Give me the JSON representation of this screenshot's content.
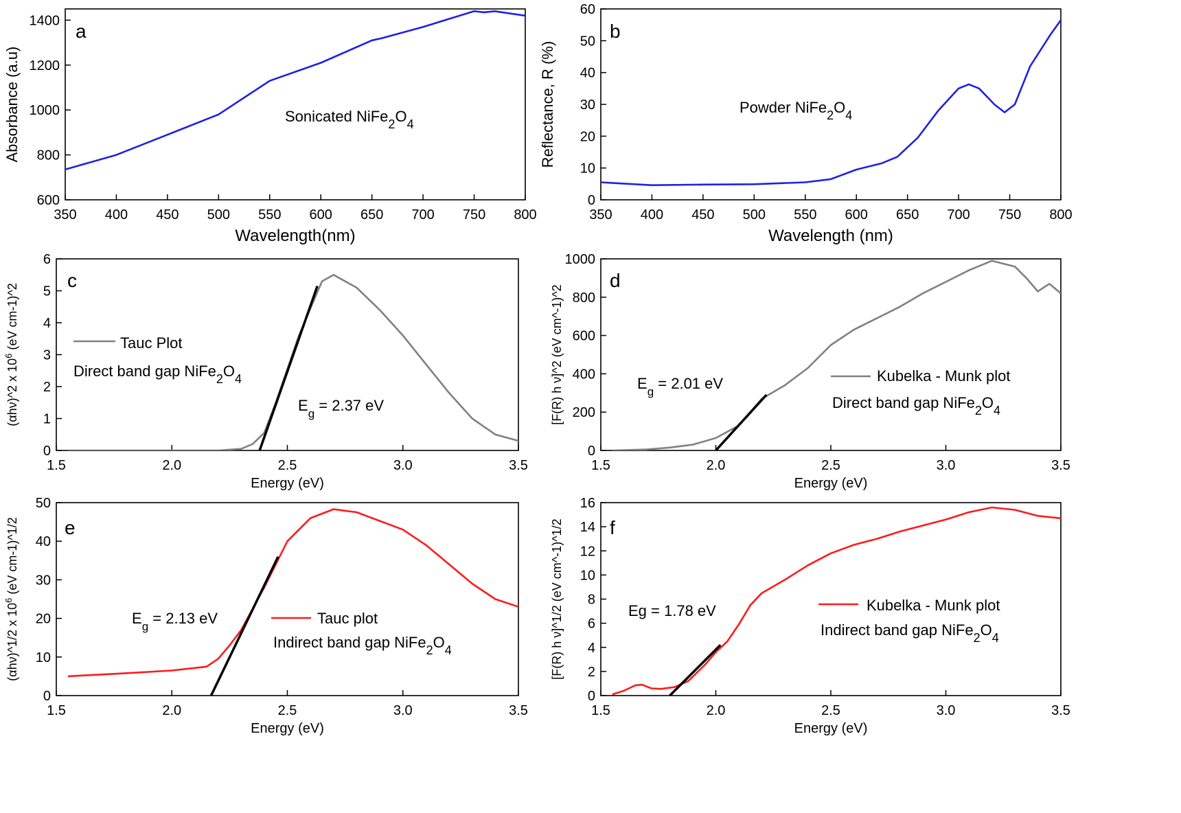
{
  "chart_data": [
    {
      "panel": "a",
      "type": "line",
      "xlabel": "Wavelength(nm)",
      "ylabel": "Absorbance (a.u)",
      "xlim": [
        350,
        800
      ],
      "ylim": [
        600,
        1450
      ],
      "xticks": [
        "350",
        "400",
        "450",
        "500",
        "550",
        "600",
        "650",
        "700",
        "750",
        "800"
      ],
      "yticks": [
        "600",
        "800",
        "1000",
        "1200",
        "1400"
      ],
      "annotation": {
        "main": "Sonicated NiFe",
        "s1": "2",
        "mid": "O",
        "s2": "4"
      },
      "color": "#1f1fe6",
      "series": [
        {
          "x": [
            350,
            400,
            450,
            500,
            550,
            600,
            650,
            660,
            700,
            750,
            760,
            770,
            800
          ],
          "values": [
            735,
            800,
            890,
            980,
            1130,
            1210,
            1310,
            1320,
            1370,
            1440,
            1435,
            1440,
            1420
          ]
        }
      ]
    },
    {
      "panel": "b",
      "type": "line",
      "xlabel": "Wavelength (nm)",
      "ylabel": "Reflectance, R (%)",
      "xlim": [
        350,
        800
      ],
      "ylim": [
        0,
        60
      ],
      "xticks": [
        "350",
        "400",
        "450",
        "500",
        "550",
        "600",
        "650",
        "700",
        "750",
        "800"
      ],
      "yticks": [
        "0",
        "10",
        "20",
        "30",
        "40",
        "50",
        "60"
      ],
      "annotation": {
        "main": "Powder NiFe",
        "s1": "2",
        "mid": "O",
        "s2": "4"
      },
      "color": "#1f1fe6",
      "series": [
        {
          "x": [
            350,
            400,
            450,
            500,
            550,
            575,
            600,
            625,
            640,
            660,
            680,
            700,
            710,
            720,
            735,
            745,
            755,
            770,
            790,
            800
          ],
          "values": [
            5.5,
            4.6,
            4.8,
            4.9,
            5.5,
            6.5,
            9.5,
            11.5,
            13.5,
            19.5,
            28,
            35,
            36.3,
            35,
            30,
            27.5,
            30,
            42,
            52,
            56.5
          ]
        }
      ]
    },
    {
      "panel": "c",
      "type": "line",
      "xlabel": "Energy (eV)",
      "ylabel": "(αhν)^2 x 10",
      "ylabel_sup": "6",
      "ylabel_tail": " (eV cm-1)^2",
      "xlim": [
        1.5,
        3.5
      ],
      "ylim": [
        0,
        6
      ],
      "xticks": [
        "1.5",
        "2.0",
        "2.5",
        "3.0",
        "3.5"
      ],
      "yticks": [
        "0",
        "1",
        "2",
        "3",
        "4",
        "5",
        "6"
      ],
      "legend": {
        "name": "Tauc Plot",
        "line2": "Direct band gap NiFe",
        "s1": "2",
        "mid": "O",
        "s2": "4"
      },
      "eg_label": {
        "main": "E",
        "sub": "g",
        "rest": " = 2.37 eV"
      },
      "color": "#808080",
      "fit_line": [
        [
          2.38,
          0
        ],
        [
          2.63,
          5.15
        ]
      ],
      "series": [
        {
          "x": [
            1.55,
            2.2,
            2.3,
            2.35,
            2.4,
            2.45,
            2.55,
            2.65,
            2.7,
            2.8,
            2.9,
            3.0,
            3.1,
            3.2,
            3.3,
            3.4,
            3.5
          ],
          "values": [
            0,
            0,
            0.05,
            0.2,
            0.55,
            1.5,
            3.6,
            5.3,
            5.5,
            5.1,
            4.4,
            3.6,
            2.7,
            1.8,
            1.0,
            0.5,
            0.3
          ]
        }
      ]
    },
    {
      "panel": "d",
      "type": "line",
      "xlabel": "Energy (eV)",
      "ylabel": "[F(R) h ν]^2 (eV cm^-1)^2",
      "xlim": [
        1.5,
        3.5
      ],
      "ylim": [
        0,
        1000
      ],
      "xticks": [
        "1.5",
        "2.0",
        "2.5",
        "3.0",
        "3.5"
      ],
      "yticks": [
        "0",
        "200",
        "400",
        "600",
        "800",
        "1000"
      ],
      "legend": {
        "name": "Kubelka - Munk plot",
        "line2": "Direct band gap NiFe",
        "s1": "2",
        "mid": "O",
        "s2": "4"
      },
      "eg_label": {
        "main": "E",
        "sub": "g",
        "rest": " = 2.01 eV"
      },
      "color": "#808080",
      "fit_line": [
        [
          2.0,
          0
        ],
        [
          2.22,
          290
        ]
      ],
      "series": [
        {
          "x": [
            1.55,
            1.7,
            1.8,
            1.9,
            2.0,
            2.1,
            2.2,
            2.3,
            2.4,
            2.5,
            2.6,
            2.7,
            2.8,
            2.9,
            3.0,
            3.1,
            3.2,
            3.3,
            3.35,
            3.4,
            3.45,
            3.5
          ],
          "values": [
            0,
            5,
            15,
            30,
            65,
            130,
            270,
            340,
            430,
            550,
            630,
            690,
            750,
            820,
            880,
            940,
            990,
            960,
            900,
            830,
            870,
            820
          ]
        }
      ]
    },
    {
      "panel": "e",
      "type": "line",
      "xlabel": "Energy (eV)",
      "ylabel": "(αhν)^1/2 x 10",
      "ylabel_sup": "6",
      "ylabel_tail": " (eV cm-1)^1/2",
      "xlim": [
        1.5,
        3.5
      ],
      "ylim": [
        0,
        50
      ],
      "xticks": [
        "1.5",
        "2.0",
        "2.5",
        "3.0",
        "3.5"
      ],
      "yticks": [
        "0",
        "10",
        "20",
        "30",
        "40",
        "50"
      ],
      "legend": {
        "name": "Tauc plot",
        "line2": "Indirect band gap NiFe",
        "s1": "2",
        "mid": "O",
        "s2": "4"
      },
      "eg_label": {
        "main": "E",
        "sub": "g",
        "rest": " = 2.13 eV"
      },
      "color": "#ff1a1a",
      "fit_line": [
        [
          2.17,
          0
        ],
        [
          2.46,
          36
        ]
      ],
      "series": [
        {
          "x": [
            1.55,
            1.8,
            2.0,
            2.15,
            2.2,
            2.25,
            2.3,
            2.4,
            2.5,
            2.6,
            2.7,
            2.8,
            3.0,
            3.1,
            3.2,
            3.3,
            3.4,
            3.5
          ],
          "values": [
            5,
            5.8,
            6.5,
            7.5,
            9.5,
            13,
            17,
            28,
            40,
            46,
            48.3,
            47.5,
            43,
            39,
            34,
            29,
            25,
            23
          ]
        }
      ]
    },
    {
      "panel": "f",
      "type": "line",
      "xlabel": "Energy (eV)",
      "ylabel": "[F(R) h ν]^1/2 (eV cm^-1)^1/2",
      "xlim": [
        1.5,
        3.5
      ],
      "ylim": [
        0,
        16
      ],
      "xticks": [
        "1.5",
        "2.0",
        "2.5",
        "3.0",
        "3.5"
      ],
      "yticks": [
        "0",
        "2",
        "4",
        "6",
        "8",
        "10",
        "12",
        "14",
        "16"
      ],
      "legend": {
        "name": "Kubelka - Munk plot",
        "line2": "Indirect band gap NiFe",
        "s1": "2",
        "mid": "O",
        "s2": "4"
      },
      "eg_label": {
        "main": "Eg",
        "sub": "",
        "rest": " = 1.78 eV"
      },
      "color": "#ff1a1a",
      "fit_line": [
        [
          1.8,
          0
        ],
        [
          2.02,
          4.2
        ]
      ],
      "series": [
        {
          "x": [
            1.55,
            1.6,
            1.65,
            1.68,
            1.72,
            1.76,
            1.82,
            1.88,
            1.95,
            2.0,
            2.05,
            2.1,
            2.15,
            2.2,
            2.3,
            2.4,
            2.5,
            2.6,
            2.7,
            2.8,
            3.0,
            3.1,
            3.2,
            3.3,
            3.4,
            3.5
          ],
          "values": [
            0.1,
            0.4,
            0.85,
            0.9,
            0.6,
            0.55,
            0.7,
            1.2,
            2.5,
            3.6,
            4.5,
            5.9,
            7.5,
            8.5,
            9.6,
            10.8,
            11.8,
            12.5,
            13.0,
            13.6,
            14.6,
            15.2,
            15.6,
            15.4,
            14.9,
            14.7
          ]
        }
      ]
    }
  ]
}
